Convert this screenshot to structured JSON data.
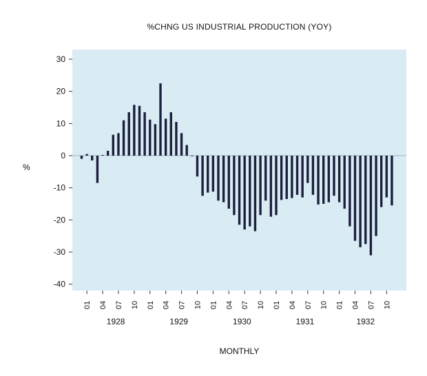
{
  "chart_data": {
    "type": "bar",
    "title": "%CHNG US INDUSTRIAL PRODUCTION (YOY)",
    "xlabel": "MONTHLY",
    "ylabel": "%",
    "ylim": [
      -42,
      33
    ],
    "yticks": [
      30,
      20,
      10,
      0,
      -10,
      -20,
      -30,
      -40
    ],
    "grid": false,
    "bar_color": "#1c1f3d",
    "plot_background": "#d9ecf3",
    "zero_line_color": "#9fb4c0",
    "x": [
      "1927-12",
      "1928-01",
      "1928-02",
      "1928-03",
      "1928-04",
      "1928-05",
      "1928-06",
      "1928-07",
      "1928-08",
      "1928-09",
      "1928-10",
      "1928-11",
      "1928-12",
      "1929-01",
      "1929-02",
      "1929-03",
      "1929-04",
      "1929-05",
      "1929-06",
      "1929-07",
      "1929-08",
      "1929-09",
      "1929-10",
      "1929-11",
      "1929-12",
      "1930-01",
      "1930-02",
      "1930-03",
      "1930-04",
      "1930-05",
      "1930-06",
      "1930-07",
      "1930-08",
      "1930-09",
      "1930-10",
      "1930-11",
      "1930-12",
      "1931-01",
      "1931-02",
      "1931-03",
      "1931-04",
      "1931-05",
      "1931-06",
      "1931-07",
      "1931-08",
      "1931-09",
      "1931-10",
      "1931-11",
      "1931-12",
      "1932-01",
      "1932-02",
      "1932-03",
      "1932-04",
      "1932-05",
      "1932-06",
      "1932-07",
      "1932-08",
      "1932-09",
      "1932-10",
      "1932-11"
    ],
    "values": [
      -1,
      0.5,
      -1.5,
      -8.5,
      0.2,
      1.5,
      6.5,
      7,
      11,
      13.5,
      15.8,
      15.5,
      13.5,
      11.2,
      9.8,
      22.5,
      11.5,
      13.5,
      10.5,
      7,
      3.3,
      -0.2,
      -6.5,
      -12.5,
      -11.5,
      -11.2,
      -14,
      -14.5,
      -16.5,
      -18.5,
      -21.5,
      -23,
      -22,
      -23.5,
      -18.5,
      -14,
      -19,
      -18.5,
      -13.8,
      -13.5,
      -13.2,
      -12.2,
      -13,
      -8.5,
      -12.2,
      -15.2,
      -15,
      -14.5,
      -12.5,
      -14.5,
      -16.5,
      -22,
      -26.5,
      -28.5,
      -27.5,
      -31,
      -25,
      -16,
      -13,
      -15.5
    ],
    "xtick_labels": [
      "01",
      "04",
      "07",
      "10",
      "01",
      "04",
      "07",
      "10",
      "01",
      "04",
      "07",
      "10",
      "01",
      "04",
      "07",
      "10",
      "01",
      "04",
      "07",
      "10"
    ],
    "year_labels": [
      "1928",
      "1929",
      "1930",
      "1931",
      "1932"
    ]
  }
}
